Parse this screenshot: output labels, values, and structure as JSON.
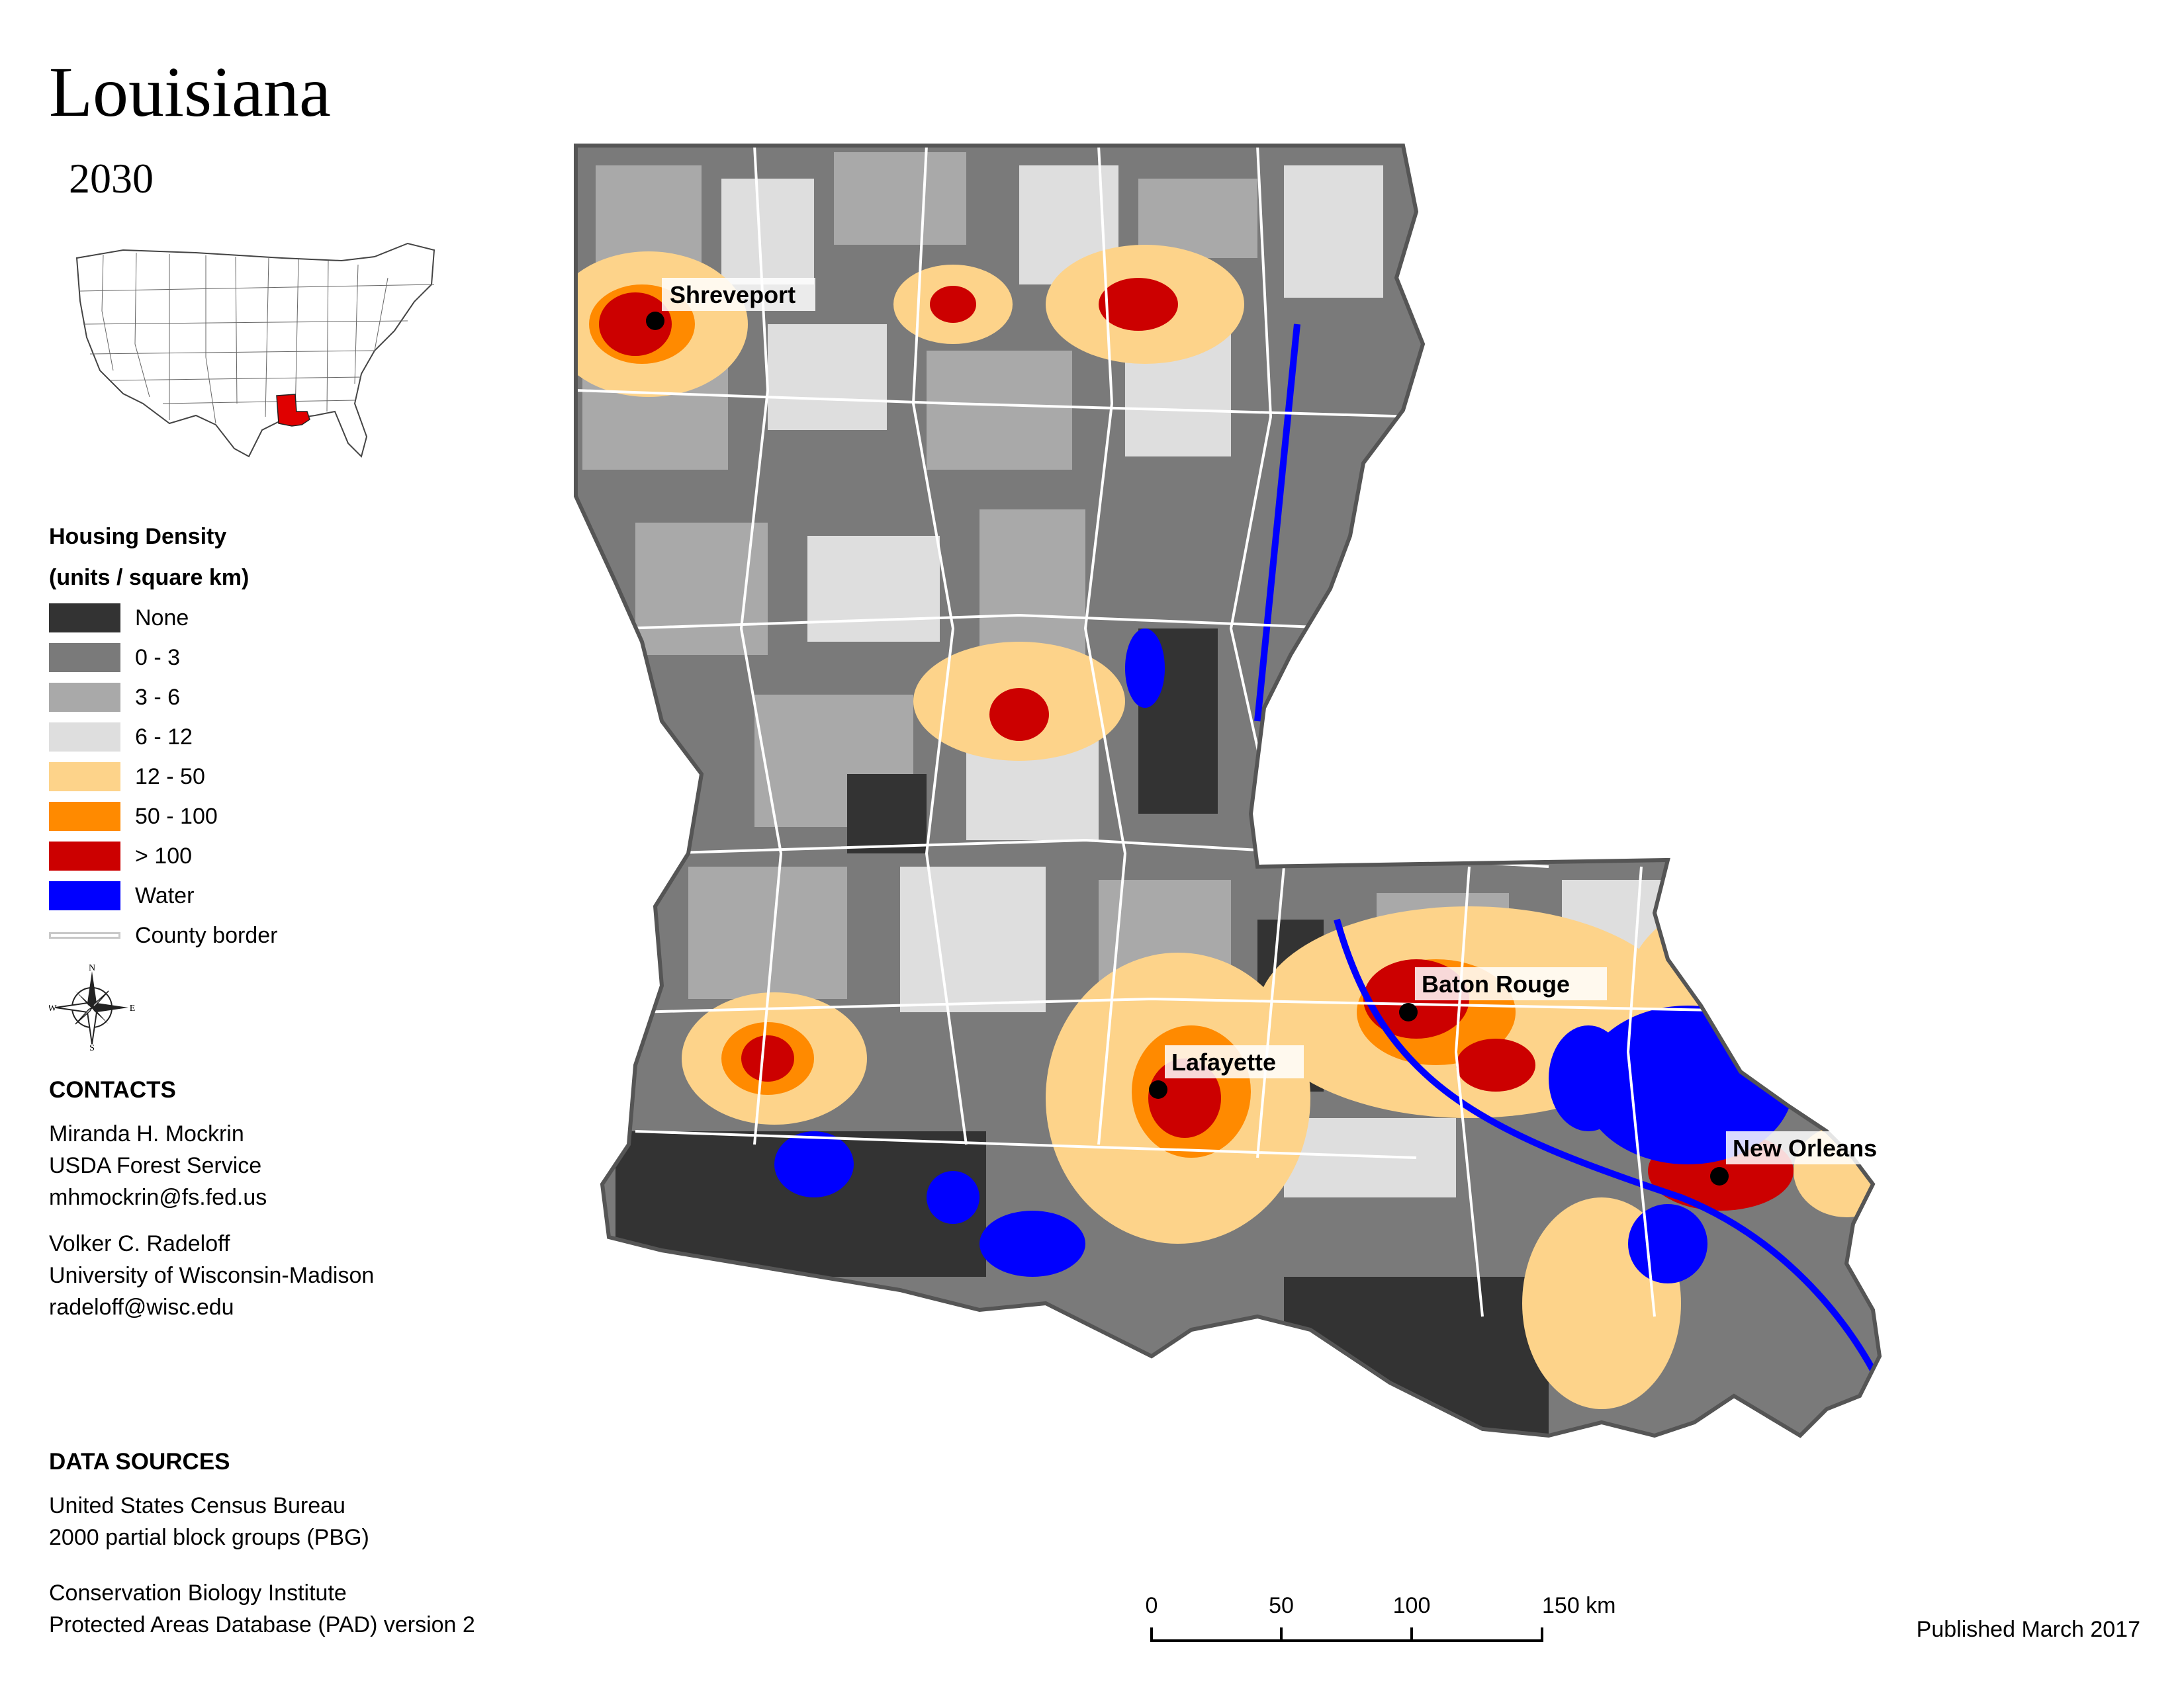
{
  "header": {
    "title": "Louisiana",
    "year": "2030"
  },
  "inset": {
    "highlight_state": "Louisiana",
    "highlight_color": "#e00000"
  },
  "legend": {
    "title_line1": "Housing Density",
    "title_line2": "(units / square km)",
    "items": [
      {
        "label": "None",
        "color": "#333333"
      },
      {
        "label": "0 - 3",
        "color": "#7a7a7a"
      },
      {
        "label": "3 - 6",
        "color": "#a9a9a9"
      },
      {
        "label": "6 - 12",
        "color": "#dedede"
      },
      {
        "label": "12 - 50",
        "color": "#fdd38a"
      },
      {
        "label": "50 - 100",
        "color": "#ff8a00"
      },
      {
        "label": "> 100",
        "color": "#cc0000"
      },
      {
        "label": "Water",
        "color": "#0000ff"
      }
    ],
    "border_label": "County border"
  },
  "compass": {
    "n": "N",
    "s": "S",
    "e": "E",
    "w": "W"
  },
  "contacts": {
    "heading": "CONTACTS",
    "person1": {
      "name": "Miranda H. Mockrin",
      "org": "USDA Forest Service",
      "email": "mhmockrin@fs.fed.us"
    },
    "person2": {
      "name": "Volker C. Radeloff",
      "org": "University of Wisconsin-Madison",
      "email": "radeloff@wisc.edu"
    }
  },
  "sources": {
    "heading": "DATA SOURCES",
    "src1_line1": "United States Census Bureau",
    "src1_line2": "2000 partial block groups (PBG)",
    "src2_line1": "Conservation Biology Institute",
    "src2_line2": "Protected Areas Database (PAD) version 2"
  },
  "scalebar": {
    "ticks": [
      "0",
      "50",
      "100",
      "150 km"
    ]
  },
  "cities": [
    "Shreveport",
    "Baton Rouge",
    "Lafayette",
    "New Orleans"
  ],
  "footer": {
    "published": "Published March 2017"
  }
}
